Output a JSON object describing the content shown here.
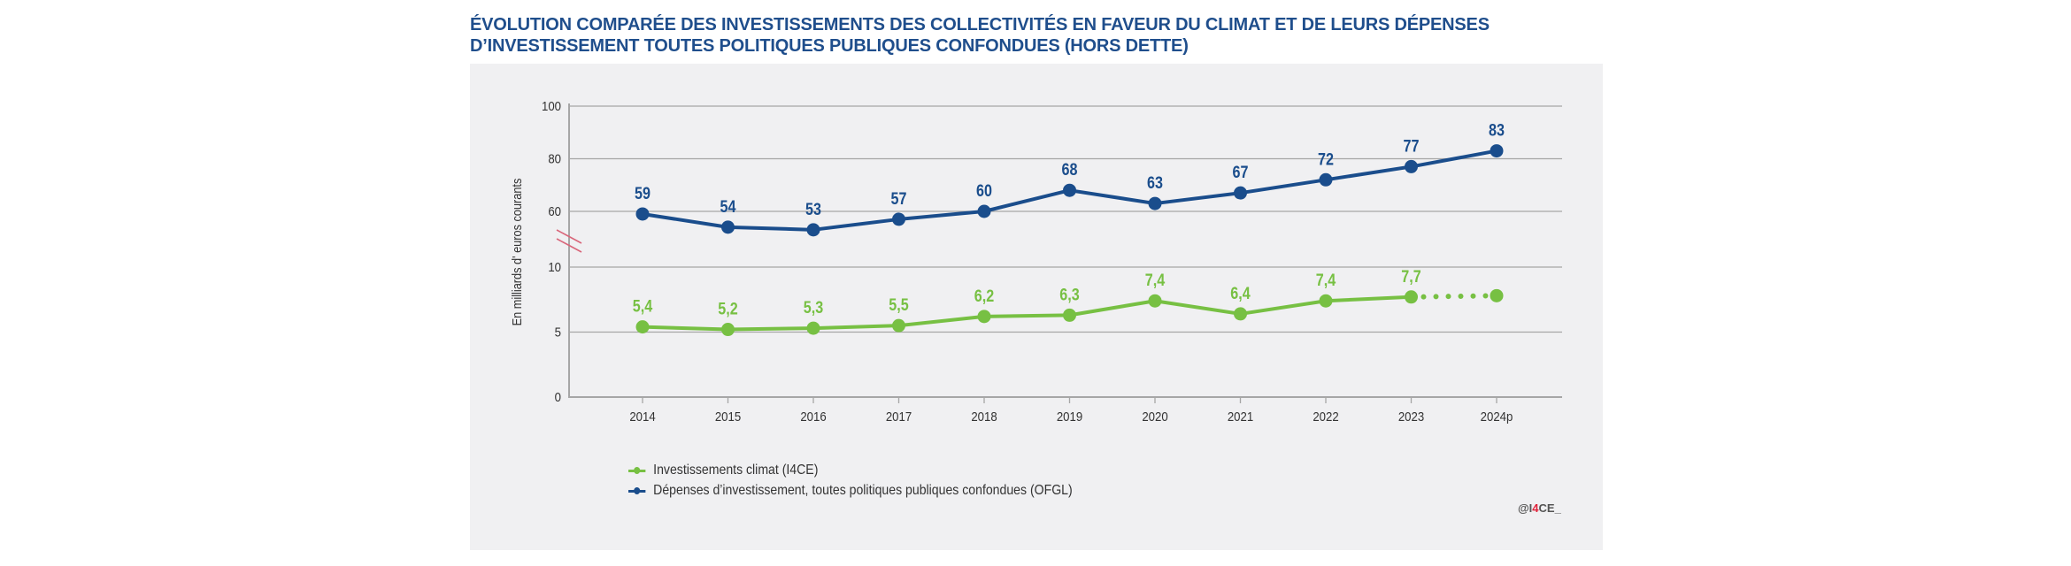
{
  "title": {
    "line1": "ÉVOLUTION COMPARÉE DES INVESTISSEMENTS DES COLLECTIVITÉS EN FAVEUR DU CLIMAT ET DE LEURS DÉPENSES",
    "line2": "D’INVESTISSEMENT TOUTES POLITIQUES PUBLIQUES CONFONDUES (HORS DETTE)"
  },
  "colors": {
    "title": "#1f4e8c",
    "blue_series": "#1a4d8c",
    "green_series": "#77c043",
    "grid": "#a6a6a6",
    "axis_break": "#d9667a",
    "panel_bg": "#f0f0f2",
    "credit_accent": "#e0223a"
  },
  "legend": {
    "items": [
      {
        "label": "Investissements climat (I4CE)",
        "color": "#77c043"
      },
      {
        "label": "Dépenses d’investissement, toutes politiques publiques confondues (OFGL)",
        "color": "#1a4d8c"
      }
    ]
  },
  "credit": {
    "prefix": "@I",
    "accent": "4",
    "suffix": "CE_"
  },
  "chart_data": {
    "type": "line",
    "title": "ÉVOLUTION COMPARÉE DES INVESTISSEMENTS DES COLLECTIVITÉS EN FAVEUR DU CLIMAT ET DE LEURS DÉPENSES D’INVESTISSEMENT TOUTES POLITIQUES PUBLIQUES CONFONDUES (HORS DETTE)",
    "xlabel": "",
    "ylabel": "En milliards d' euros courants",
    "categories": [
      "2014",
      "2015",
      "2016",
      "2017",
      "2018",
      "2019",
      "2020",
      "2021",
      "2022",
      "2023",
      "2024p"
    ],
    "axis_break": true,
    "y_ticks": [
      "0",
      "5",
      "10",
      "60",
      "80",
      "100"
    ],
    "y_segments": [
      {
        "name": "lower",
        "range": [
          0,
          10
        ]
      },
      {
        "name": "upper",
        "range": [
          60,
          100
        ]
      }
    ],
    "grid": true,
    "legend_position": "bottom-left",
    "series": [
      {
        "name": "Dépenses d’investissement, toutes politiques publiques confondues (OFGL)",
        "segment": "upper",
        "color": "#1a4d8c",
        "values": [
          59,
          54,
          53,
          57,
          60,
          68,
          63,
          67,
          72,
          77,
          83
        ],
        "labels": [
          "59",
          "54",
          "53",
          "57",
          "60",
          "68",
          "63",
          "67",
          "72",
          "77",
          "83"
        ],
        "projected_from_index": null
      },
      {
        "name": "Investissements climat (I4CE)",
        "segment": "lower",
        "color": "#77c043",
        "values": [
          5.4,
          5.2,
          5.3,
          5.5,
          6.2,
          6.3,
          7.4,
          6.4,
          7.4,
          7.7,
          7.8
        ],
        "labels": [
          "5,4",
          "5,2",
          "5,3",
          "5,5",
          "6,2",
          "6,3",
          "7,4",
          "6,4",
          "7,4",
          "7,7",
          ""
        ],
        "projected_from_index": 9
      }
    ]
  }
}
